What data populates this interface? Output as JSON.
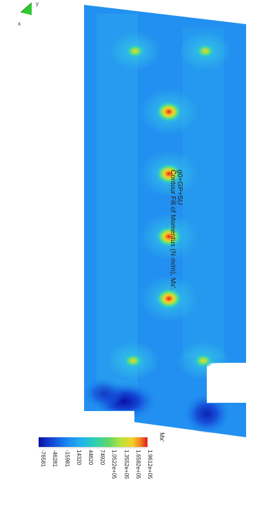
{
  "plot": {
    "load_combination": "g0+GP+SU",
    "title": "Contour Fill of Momentus (N·m/m), Mx'."
  },
  "axes": {
    "y_label": "y",
    "x_label": "x"
  },
  "legend": {
    "title": "Mx'",
    "values": [
      "1.9612e+05",
      "1.6582e+05",
      "1.3552e+05",
      "1.0522e+05",
      "74920",
      "44620",
      "14320",
      "-15981",
      "-46281",
      "-76581"
    ],
    "colors": [
      "#e4181a",
      "#f08a1f",
      "#f5d02a",
      "#b9e43a",
      "#5fd66a",
      "#2fd0b0",
      "#21b6ea",
      "#1a86f0",
      "#1446d6",
      "#0a10a6"
    ]
  },
  "colors": {
    "field_base": "#2290f0",
    "hot": "#e4181a",
    "cold": "#0a10a6"
  }
}
